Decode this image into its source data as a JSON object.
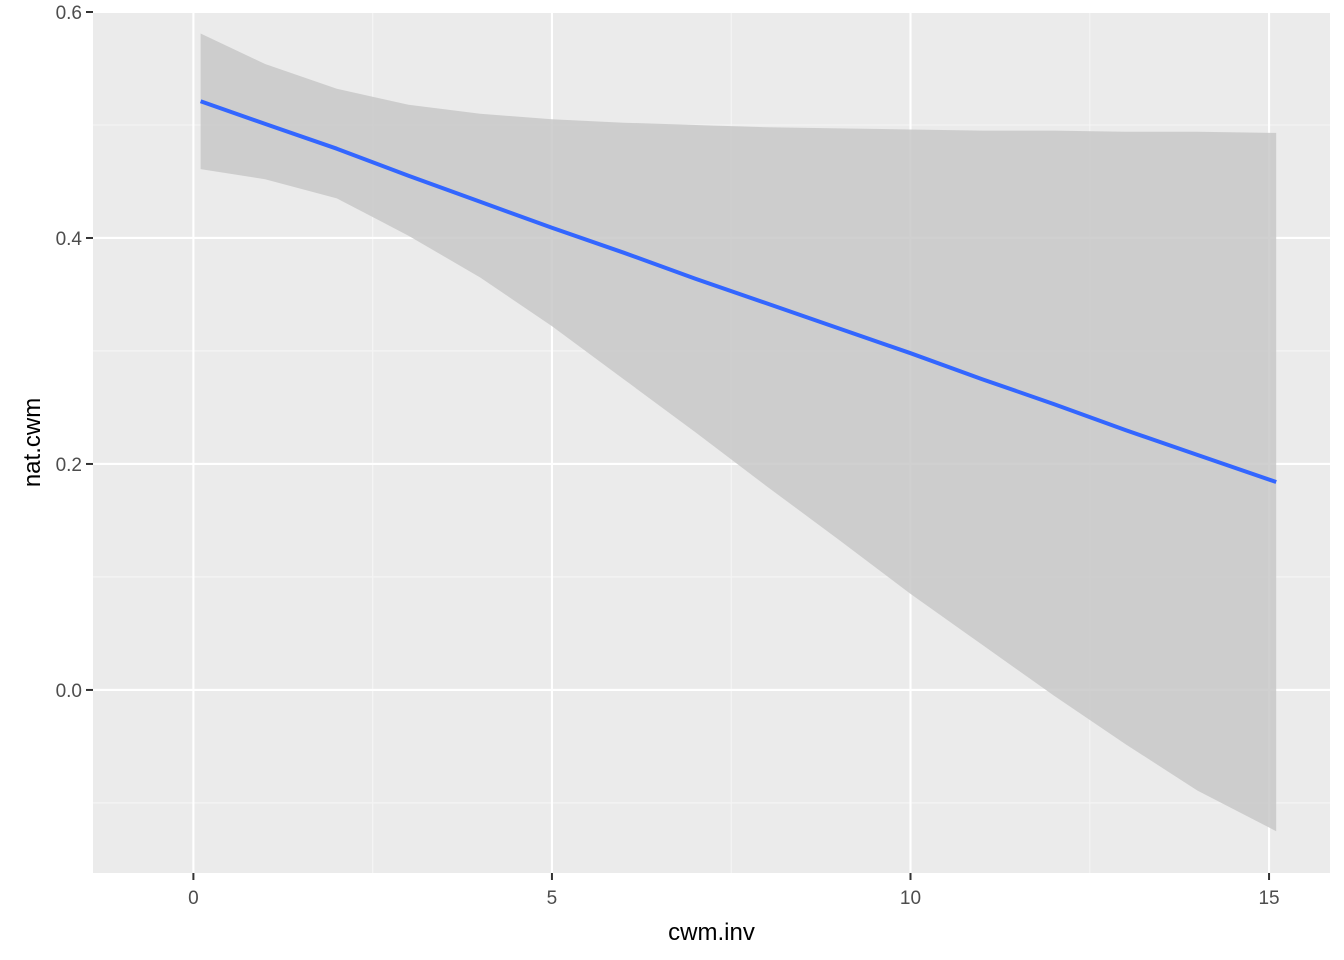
{
  "chart_data": {
    "type": "line",
    "title": "",
    "xlabel": "cwm.inv",
    "ylabel": "nat.cwm",
    "xlim": [
      -1.4,
      15.85
    ],
    "ylim": [
      -0.162,
      0.6
    ],
    "x_ticks": [
      0,
      5,
      10,
      15
    ],
    "x_tick_labels": [
      "0",
      "5",
      "10",
      "15"
    ],
    "y_ticks": [
      0.0,
      0.2,
      0.4,
      0.6
    ],
    "y_tick_labels": [
      "0.0",
      "0.2",
      "0.4",
      "0.6"
    ],
    "grid": true,
    "legend": "none",
    "series": [
      {
        "x": [
          0.1,
          1.0,
          2.0,
          3.0,
          4.0,
          5.0,
          6.0,
          7.0,
          8.0,
          9.0,
          10.0,
          11.0,
          12.0,
          13.0,
          14.0,
          15.1
        ],
        "y": [
          0.521,
          0.501,
          0.479,
          0.455,
          0.432,
          0.409,
          0.387,
          0.364,
          0.342,
          0.32,
          0.298,
          0.275,
          0.253,
          0.23,
          0.208,
          0.184
        ],
        "lower": [
          0.461,
          0.452,
          0.435,
          0.402,
          0.365,
          0.322,
          0.275,
          0.228,
          0.18,
          0.133,
          0.085,
          0.04,
          -0.005,
          -0.048,
          -0.089,
          -0.125
        ],
        "upper": [
          0.581,
          0.554,
          0.532,
          0.518,
          0.51,
          0.505,
          0.502,
          0.5,
          0.498,
          0.497,
          0.496,
          0.495,
          0.495,
          0.494,
          0.494,
          0.493
        ]
      }
    ],
    "colors": {
      "panel": "#ebebeb",
      "grid_major": "#ffffff",
      "grid_minor": "#f5f5f5",
      "line": "#3366ff",
      "ribbon": "#c8c8c8",
      "tick": "#333333"
    }
  }
}
